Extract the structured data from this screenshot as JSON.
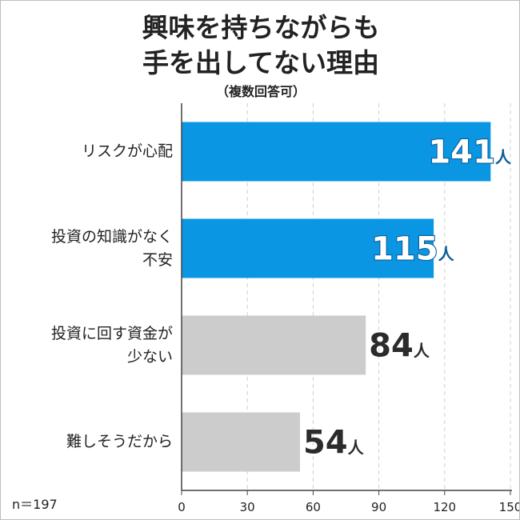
{
  "title_lines": [
    "興味を持ちながらも",
    "手を出してない理由"
  ],
  "subtitle": "（複数回答可）",
  "n_label": "n＝197",
  "chart_data": {
    "type": "bar",
    "orientation": "horizontal",
    "title": "興味を持ちながらも手を出してない理由",
    "subtitle": "（複数回答可）",
    "categories": [
      "リスクが心配",
      "投資の知識がなく不安",
      "投資に回す資金が少ない",
      "難しそうだから"
    ],
    "category_lines": [
      [
        "リスクが心配"
      ],
      [
        "投資の知識がなく",
        "不安"
      ],
      [
        "投資に回す資金が",
        "少ない"
      ],
      [
        "難しそうだから"
      ]
    ],
    "values": [
      141,
      115,
      84,
      54
    ],
    "value_unit": "人",
    "xlim": [
      0,
      150
    ],
    "xticks": [
      0,
      30,
      60,
      90,
      120,
      150
    ],
    "grid": true,
    "colors": [
      "#0a96e3",
      "#0a96e3",
      "#cccccc",
      "#cccccc"
    ],
    "label_styles": [
      "outlined",
      "outlined",
      "plain",
      "plain"
    ],
    "outline_label_color": "#0b5e99",
    "plain_label_color": "#2b2b2b"
  }
}
